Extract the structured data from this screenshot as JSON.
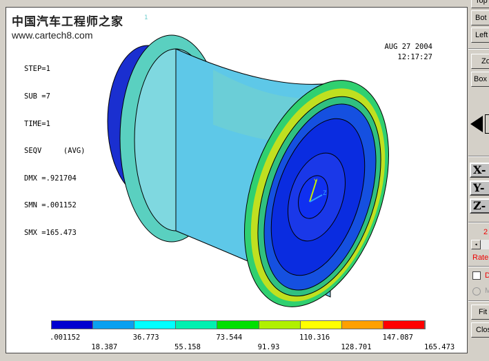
{
  "watermark": {
    "title": "中国汽车工程师之家",
    "url": "www.cartech8.com",
    "window_number": "1"
  },
  "info": {
    "lines": [
      "STEP=1",
      "SUB =7",
      "TIME=1",
      "SEQV     (AVG)",
      "DMX =.921704",
      "SMN =.001152",
      "SMX =165.473"
    ],
    "date": "AUG 27 2004",
    "time": "12:17:27"
  },
  "triad": {
    "y": "Y",
    "z": "Z"
  },
  "legend": {
    "colors": [
      "#0000d0",
      "#0aa0f0",
      "#00ffff",
      "#00f0b0",
      "#00e000",
      "#b0f000",
      "#ffff00",
      "#ffa000",
      "#ff0000"
    ],
    "labels_top": [
      ".001152",
      "36.773",
      "73.544",
      "110.316",
      "147.087"
    ],
    "labels_bottom": [
      "18.387",
      "55.158",
      "91.93",
      "128.701",
      "165.473"
    ]
  },
  "panel": {
    "top": "Top",
    "bot": "Bot",
    "left": "Left",
    "zoom": "Zoom",
    "boxzoom": "Box Zoom",
    "x": "X-",
    "y": "Y-",
    "z": "Z-",
    "rate_value": "2",
    "rate_label": "Rate",
    "dynamic": "D",
    "mode": "M",
    "fit": "Fit",
    "close": "Close"
  }
}
